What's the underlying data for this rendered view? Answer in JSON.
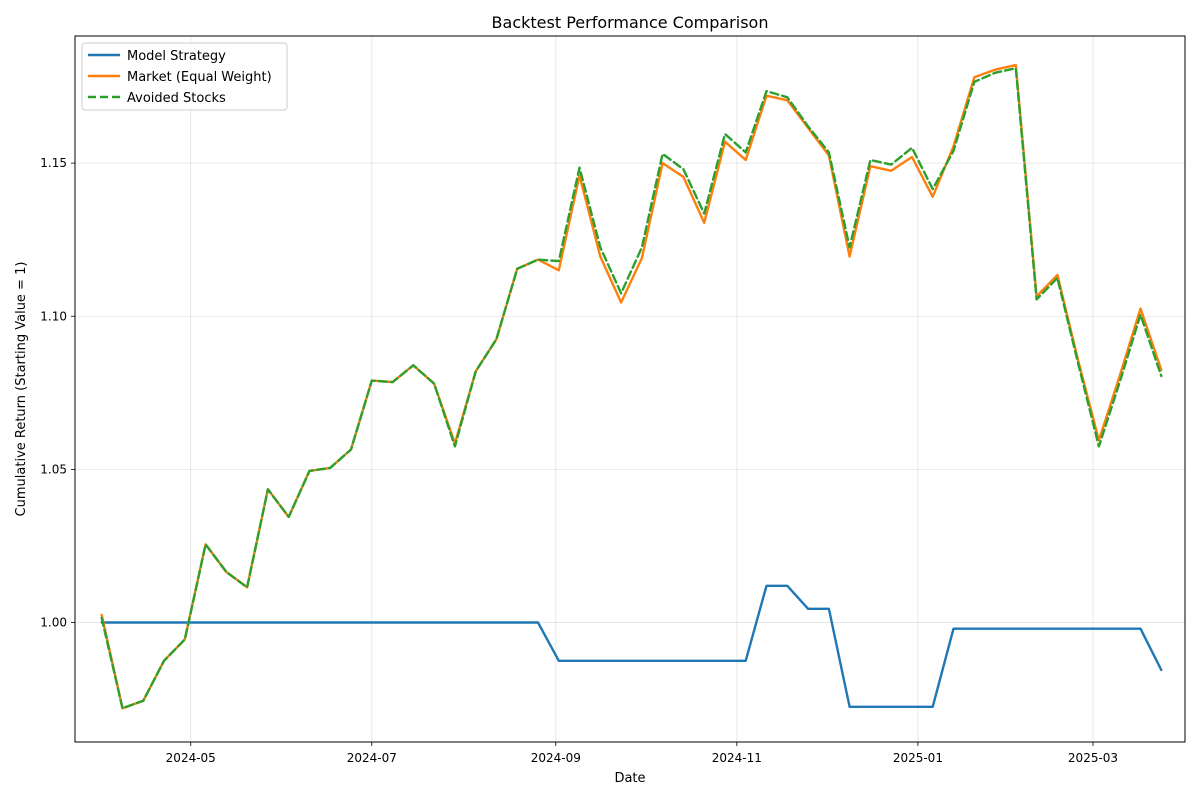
{
  "chart_data": {
    "type": "line",
    "title": "Backtest Performance Comparison",
    "xlabel": "Date",
    "ylabel": "Cumulative Return (Starting Value = 1)",
    "x_ticks": [
      "2024-05",
      "2024-07",
      "2024-09",
      "2024-11",
      "2025-01",
      "2025-03"
    ],
    "y_ticks": [
      "1.00",
      "1.05",
      "1.10",
      "1.15"
    ],
    "y_tick_values": [
      1.0,
      1.05,
      1.1,
      1.15
    ],
    "xlim": [
      "2024-03-23",
      "2025-04-01"
    ],
    "ylim": [
      0.961,
      1.1915
    ],
    "grid": true,
    "legend_position": "top-left",
    "x": [
      "2024-04-01",
      "2024-04-08",
      "2024-04-15",
      "2024-04-22",
      "2024-04-29",
      "2024-05-06",
      "2024-05-13",
      "2024-05-20",
      "2024-05-27",
      "2024-06-03",
      "2024-06-10",
      "2024-06-17",
      "2024-06-24",
      "2024-07-01",
      "2024-07-08",
      "2024-07-15",
      "2024-07-22",
      "2024-07-29",
      "2024-08-05",
      "2024-08-12",
      "2024-08-19",
      "2024-08-26",
      "2024-09-02",
      "2024-09-09",
      "2024-09-16",
      "2024-09-23",
      "2024-09-30",
      "2024-10-07",
      "2024-10-14",
      "2024-10-21",
      "2024-10-28",
      "2024-11-04",
      "2024-11-11",
      "2024-11-18",
      "2024-11-25",
      "2024-12-02",
      "2024-12-09",
      "2024-12-16",
      "2024-12-23",
      "2024-12-30",
      "2025-01-06",
      "2025-01-13",
      "2025-01-20",
      "2025-01-27",
      "2025-02-03",
      "2025-02-10",
      "2025-02-17",
      "2025-02-24",
      "2025-03-03",
      "2025-03-10",
      "2025-03-17",
      "2025-03-24"
    ],
    "series": [
      {
        "name": "Model Strategy",
        "color": "#1f77b4",
        "style": "solid",
        "values": [
          1.0,
          1.0,
          1.0,
          1.0,
          1.0,
          1.0,
          1.0,
          1.0,
          1.0,
          1.0,
          1.0,
          1.0,
          1.0,
          1.0,
          1.0,
          1.0,
          1.0,
          1.0,
          1.0,
          1.0,
          1.0,
          1.0,
          0.9875,
          0.9875,
          0.9875,
          0.9875,
          0.9875,
          0.9875,
          0.9875,
          0.9875,
          0.9875,
          0.9875,
          1.012,
          1.012,
          1.0045,
          1.0045,
          0.9725,
          0.9725,
          0.9725,
          0.9725,
          0.9725,
          0.998,
          0.998,
          0.998,
          0.998,
          0.998,
          0.998,
          0.998,
          0.998,
          0.998,
          0.998,
          0.9845
        ]
      },
      {
        "name": "Market (Equal Weight)",
        "color": "#ff7f0e",
        "style": "solid",
        "values": [
          1.0025,
          0.972,
          0.9745,
          0.9875,
          0.9945,
          1.0255,
          1.0165,
          1.0115,
          1.0435,
          1.0345,
          1.0495,
          1.0505,
          1.0565,
          1.079,
          1.0785,
          1.084,
          1.078,
          1.0585,
          1.082,
          1.0925,
          1.1155,
          1.1185,
          1.115,
          1.146,
          1.1195,
          1.1045,
          1.119,
          1.15,
          1.1455,
          1.1305,
          1.157,
          1.151,
          1.172,
          1.1705,
          1.1615,
          1.1525,
          1.1195,
          1.149,
          1.1475,
          1.152,
          1.139,
          1.1555,
          1.178,
          1.1805,
          1.182,
          1.1065,
          1.1135,
          1.0855,
          1.0595,
          1.0805,
          1.1025,
          1.0825
        ]
      },
      {
        "name": "Avoided Stocks",
        "color": "#2ca02c",
        "style": "dashed",
        "values": [
          1.0015,
          0.972,
          0.9745,
          0.9875,
          0.9945,
          1.0255,
          1.0165,
          1.0115,
          1.0435,
          1.0345,
          1.0495,
          1.0505,
          1.0565,
          1.079,
          1.0785,
          1.084,
          1.078,
          1.0575,
          1.082,
          1.0925,
          1.1155,
          1.1185,
          1.118,
          1.1485,
          1.1225,
          1.1075,
          1.1225,
          1.153,
          1.148,
          1.1335,
          1.1595,
          1.1535,
          1.1735,
          1.1715,
          1.162,
          1.1535,
          1.1225,
          1.151,
          1.1495,
          1.155,
          1.1415,
          1.154,
          1.1765,
          1.1795,
          1.181,
          1.1055,
          1.1125,
          1.0845,
          1.0575,
          1.0785,
          1.1005,
          1.0805
        ]
      }
    ]
  }
}
